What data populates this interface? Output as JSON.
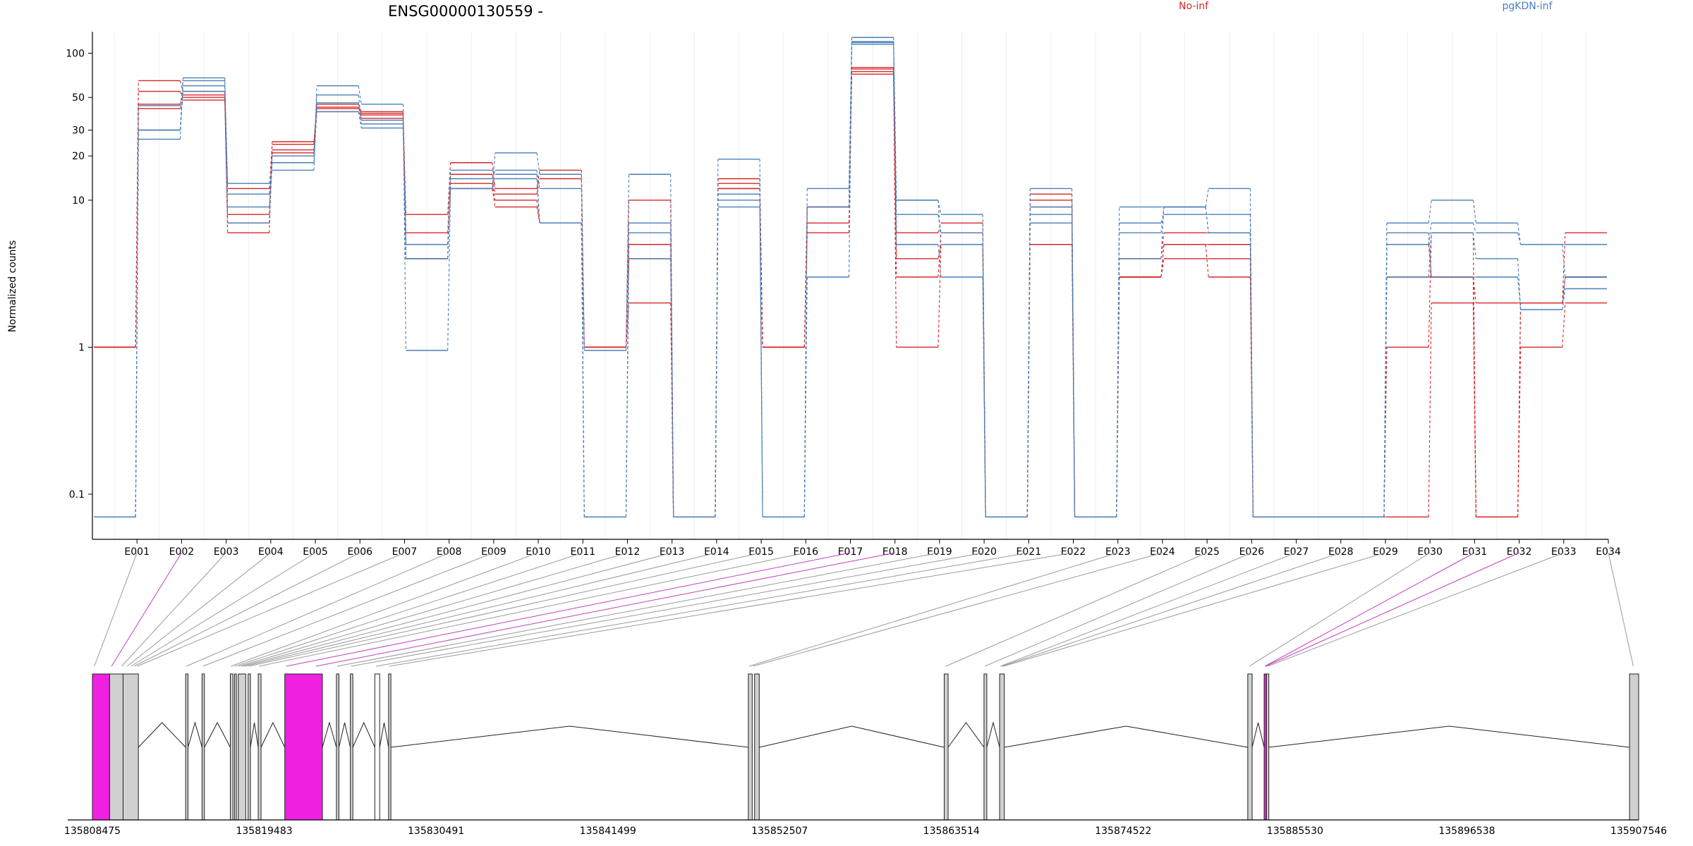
{
  "chart_data": {
    "type": "line",
    "title": "ENSG00000130559 -",
    "ylabel": "Normalized counts",
    "y_scale": "log",
    "ylim": [
      0.065,
      140
    ],
    "y_ticks": [
      "0.1",
      "1",
      "10",
      "20",
      "30",
      "50",
      "100"
    ],
    "y_tick_values": [
      0.1,
      1,
      10,
      20,
      30,
      50,
      100
    ],
    "grid": "vertical-only",
    "legend_placement": "top",
    "categories": [
      "E001",
      "E002",
      "E003",
      "E004",
      "E005",
      "E006",
      "E007",
      "E008",
      "E009",
      "E010",
      "E011",
      "E012",
      "E013",
      "E014",
      "E015",
      "E016",
      "E017",
      "E018",
      "E019",
      "E020",
      "E021",
      "E022",
      "E023",
      "E024",
      "E025",
      "E026",
      "E027",
      "E028",
      "E029",
      "E030",
      "E031",
      "E032",
      "E033",
      "E034"
    ],
    "groups": [
      {
        "name": "No-inf",
        "color": "#d62728"
      },
      {
        "name": "pgKDN-inf",
        "color": "#4a7fb8"
      }
    ],
    "series": [
      {
        "group": "No-inf",
        "values": [
          1,
          65,
          55,
          6,
          25,
          45,
          40,
          8,
          18,
          12,
          16,
          1,
          10,
          0.07,
          14,
          1,
          9,
          80,
          6,
          7,
          0.07,
          11,
          0.07,
          4,
          6,
          6,
          0.07,
          0.07,
          0.07,
          1,
          6,
          0.07,
          2,
          6
        ]
      },
      {
        "group": "No-inf",
        "values": [
          1,
          55,
          50,
          7,
          22,
          42,
          38,
          6,
          15,
          11,
          14,
          1,
          5,
          0.07,
          12,
          1,
          7,
          75,
          4,
          5,
          0.07,
          10,
          0.07,
          3,
          5,
          5,
          0.07,
          0.07,
          0.07,
          3,
          3,
          0.07,
          2,
          3
        ]
      },
      {
        "group": "No-inf",
        "values": [
          1,
          42,
          48,
          8,
          21,
          40,
          36,
          5,
          12,
          9,
          7,
          1,
          4,
          0.07,
          13,
          1,
          6,
          72,
          1,
          5,
          0.07,
          9,
          0.07,
          3,
          4,
          4,
          0.07,
          0.07,
          0.07,
          0.07,
          2,
          0.07,
          1,
          2
        ]
      },
      {
        "group": "No-inf",
        "values": [
          1,
          45,
          52,
          12,
          24,
          43,
          39,
          4,
          13,
          10,
          7,
          1,
          2,
          0.07,
          12,
          1,
          9,
          78,
          3,
          6,
          0.07,
          5,
          0.07,
          3,
          5,
          3,
          0.07,
          0.07,
          0.07,
          5,
          3,
          2,
          2,
          3
        ]
      },
      {
        "group": "pgKDN-inf",
        "values": [
          0.07,
          30,
          68,
          13,
          16,
          60,
          45,
          0.95,
          12,
          21,
          15,
          0.95,
          15,
          0.07,
          19,
          0.07,
          12,
          128,
          10,
          8,
          0.07,
          12,
          0.07,
          9,
          9,
          12,
          0.07,
          0.07,
          0.07,
          7,
          10,
          7,
          5,
          5
        ]
      },
      {
        "group": "pgKDN-inf",
        "values": [
          0.07,
          26,
          65,
          11,
          18,
          52,
          35,
          5,
          14,
          16,
          12,
          0.07,
          7,
          0.07,
          10,
          0.07,
          9,
          120,
          8,
          6,
          0.07,
          9,
          0.07,
          7,
          8,
          8,
          0.07,
          0.07,
          0.07,
          5,
          7,
          6,
          5,
          3
        ]
      },
      {
        "group": "pgKDN-inf",
        "values": [
          0.07,
          44,
          60,
          9,
          20,
          46,
          33,
          4,
          16,
          15,
          7,
          0.07,
          6,
          0.07,
          11,
          0.07,
          3,
          115,
          5,
          3,
          0.07,
          7,
          0.07,
          6,
          9,
          6,
          0.07,
          0.07,
          0.07,
          3,
          6,
          4,
          1.8,
          3
        ]
      },
      {
        "group": "pgKDN-inf",
        "values": [
          0.07,
          30,
          55,
          7,
          18,
          40,
          31,
          4,
          12,
          14,
          7,
          0.07,
          4,
          0.07,
          9,
          0.07,
          9,
          118,
          10,
          5,
          0.07,
          8,
          0.07,
          4,
          9,
          6,
          0.07,
          0.07,
          0.07,
          6,
          3,
          3,
          1.8,
          2.5
        ]
      }
    ],
    "genomic_axis": {
      "ticks": [
        "135808475",
        "135819483",
        "135830491",
        "135841499",
        "135852507",
        "135863514",
        "135874522",
        "135885530",
        "135896538",
        "135907546"
      ],
      "start": 135808475,
      "end": 135907546,
      "exons": [
        {
          "start": 135808475,
          "end": 135809580,
          "color": "#f020e0"
        },
        {
          "start": 135809580,
          "end": 135810440,
          "color": "#d0d0d0"
        },
        {
          "start": 135810440,
          "end": 135811420,
          "color": "#d0d0d0"
        },
        {
          "start": 135814450,
          "end": 135814600,
          "color": "#d0d0d0"
        },
        {
          "start": 135815500,
          "end": 135815650,
          "color": "#d0d0d0"
        },
        {
          "start": 135817310,
          "end": 135817480,
          "color": "#d0d0d0"
        },
        {
          "start": 135817580,
          "end": 135817700,
          "color": "#d0d0d0"
        },
        {
          "start": 135817820,
          "end": 135818300,
          "color": "#d0d0d0"
        },
        {
          "start": 135818450,
          "end": 135818600,
          "color": "#d0d0d0"
        },
        {
          "start": 135819100,
          "end": 135819280,
          "color": "#d0d0d0"
        },
        {
          "start": 135820800,
          "end": 135823210,
          "color": "#f020e0"
        },
        {
          "start": 135824110,
          "end": 135824270,
          "color": "#d0d0d0"
        },
        {
          "start": 135825000,
          "end": 135825160,
          "color": "#d0d0d0"
        },
        {
          "start": 135826570,
          "end": 135826880,
          "color": "#ffffff"
        },
        {
          "start": 135827450,
          "end": 135827600,
          "color": "#d0d0d0"
        },
        {
          "start": 135850500,
          "end": 135850750,
          "color": "#d0d0d0"
        },
        {
          "start": 135850900,
          "end": 135851200,
          "color": "#d0d0d0"
        },
        {
          "start": 135863050,
          "end": 135863300,
          "color": "#d0d0d0"
        },
        {
          "start": 135865600,
          "end": 135865780,
          "color": "#d0d0d0"
        },
        {
          "start": 135866600,
          "end": 135866900,
          "color": "#d0d0d0"
        },
        {
          "start": 135882500,
          "end": 135882780,
          "color": "#d0d0d0"
        },
        {
          "start": 135883550,
          "end": 135883700,
          "color": "#f020e0"
        },
        {
          "start": 135883700,
          "end": 135883850,
          "color": "#d0d0d0"
        },
        {
          "start": 135906960,
          "end": 135907546,
          "color": "#d0d0d0"
        }
      ],
      "bin_links": [
        {
          "bin": "E001",
          "pos": 135808600,
          "hl": false
        },
        {
          "bin": "E002",
          "pos": 135809700,
          "hl": true
        },
        {
          "bin": "E003",
          "pos": 135810350,
          "hl": false
        },
        {
          "bin": "E004",
          "pos": 135810700,
          "hl": false
        },
        {
          "bin": "E005",
          "pos": 135810950,
          "hl": false
        },
        {
          "bin": "E006",
          "pos": 135811150,
          "hl": false
        },
        {
          "bin": "E007",
          "pos": 135811350,
          "hl": false
        },
        {
          "bin": "E008",
          "pos": 135814500,
          "hl": false
        },
        {
          "bin": "E009",
          "pos": 135815560,
          "hl": false
        },
        {
          "bin": "E010",
          "pos": 135817350,
          "hl": false
        },
        {
          "bin": "E011",
          "pos": 135817600,
          "hl": false
        },
        {
          "bin": "E012",
          "pos": 135817850,
          "hl": false
        },
        {
          "bin": "E013",
          "pos": 135818050,
          "hl": false
        },
        {
          "bin": "E014",
          "pos": 135818250,
          "hl": false
        },
        {
          "bin": "E015",
          "pos": 135818500,
          "hl": false
        },
        {
          "bin": "E016",
          "pos": 135819150,
          "hl": false
        },
        {
          "bin": "E017",
          "pos": 135820900,
          "hl": true
        },
        {
          "bin": "E018",
          "pos": 135822800,
          "hl": true
        },
        {
          "bin": "E019",
          "pos": 135824150,
          "hl": false
        },
        {
          "bin": "E020",
          "pos": 135825050,
          "hl": false
        },
        {
          "bin": "E021",
          "pos": 135826650,
          "hl": false
        },
        {
          "bin": "E022",
          "pos": 135827500,
          "hl": false
        },
        {
          "bin": "E023",
          "pos": 135850550,
          "hl": false
        },
        {
          "bin": "E024",
          "pos": 135850800,
          "hl": false
        },
        {
          "bin": "E025",
          "pos": 135863150,
          "hl": false
        },
        {
          "bin": "E026",
          "pos": 135865650,
          "hl": false
        },
        {
          "bin": "E027",
          "pos": 135866650,
          "hl": false
        },
        {
          "bin": "E028",
          "pos": 135866750,
          "hl": false
        },
        {
          "bin": "E029",
          "pos": 135866850,
          "hl": false
        },
        {
          "bin": "E030",
          "pos": 135882600,
          "hl": false
        },
        {
          "bin": "E031",
          "pos": 135883600,
          "hl": true
        },
        {
          "bin": "E032",
          "pos": 135883650,
          "hl": true
        },
        {
          "bin": "E033",
          "pos": 135883780,
          "hl": false
        },
        {
          "bin": "E034",
          "pos": 135907200,
          "hl": false
        }
      ]
    }
  }
}
